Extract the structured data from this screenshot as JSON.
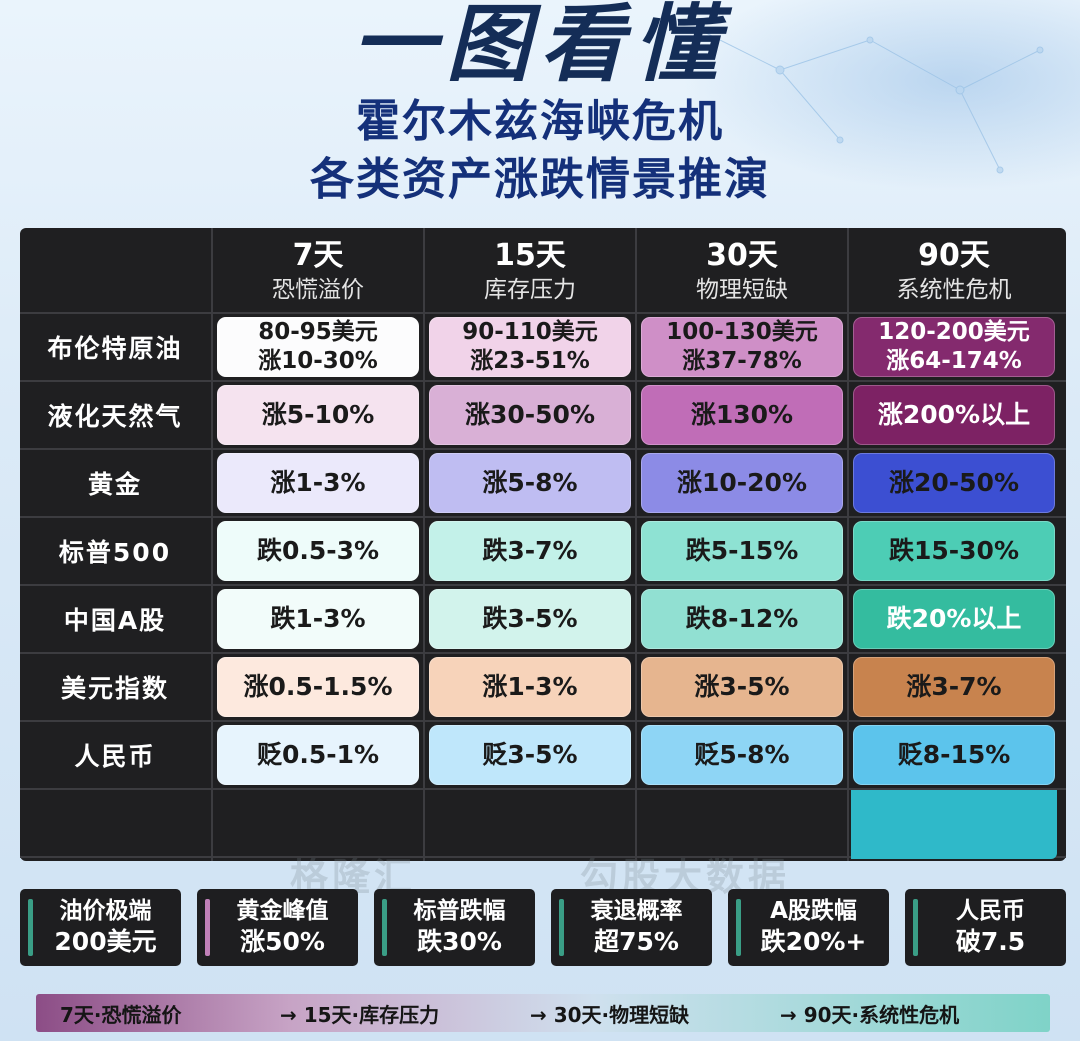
{
  "title": {
    "main": "一图看懂",
    "line1": "霍尔木兹海峡危机",
    "line2": "各类资产涨跌情景推演"
  },
  "columns": [
    {
      "days": "7天",
      "stage": "恐慌溢价"
    },
    {
      "days": "15天",
      "stage": "库存压力"
    },
    {
      "days": "30天",
      "stage": "物理短缺"
    },
    {
      "days": "90天",
      "stage": "系统性危机"
    }
  ],
  "rows": [
    {
      "label": "布伦特原油",
      "cells": [
        {
          "l1": "80-95美元",
          "l2": "涨10-30%"
        },
        {
          "l1": "90-110美元",
          "l2": "涨23-51%"
        },
        {
          "l1": "100-130美元",
          "l2": "涨37-78%"
        },
        {
          "l1": "120-200美元",
          "l2": "涨64-174%"
        }
      ]
    },
    {
      "label": "液化天然气",
      "cells": [
        {
          "l1": "涨5-10%"
        },
        {
          "l1": "涨30-50%"
        },
        {
          "l1": "涨130%"
        },
        {
          "l1": "涨200%以上"
        }
      ]
    },
    {
      "label": "黄金",
      "cells": [
        {
          "l1": "涨1-3%"
        },
        {
          "l1": "涨5-8%"
        },
        {
          "l1": "涨10-20%"
        },
        {
          "l1": "涨20-50%"
        }
      ]
    },
    {
      "label": "标普500",
      "cells": [
        {
          "l1": "跌0.5-3%"
        },
        {
          "l1": "跌3-7%"
        },
        {
          "l1": "跌5-15%"
        },
        {
          "l1": "跌15-30%"
        }
      ]
    },
    {
      "label": "中国A股",
      "cells": [
        {
          "l1": "跌1-3%"
        },
        {
          "l1": "跌3-5%"
        },
        {
          "l1": "跌8-12%"
        },
        {
          "l1": "跌20%以上"
        }
      ]
    },
    {
      "label": "美元指数",
      "cells": [
        {
          "l1": "涨0.5-1.5%"
        },
        {
          "l1": "涨1-3%"
        },
        {
          "l1": "涨3-5%"
        },
        {
          "l1": "涨3-7%"
        }
      ]
    },
    {
      "label": "人民币",
      "cells": [
        {
          "l1": "贬0.5-1%"
        },
        {
          "l1": "贬3-5%"
        },
        {
          "l1": "贬5-8%"
        },
        {
          "l1": "贬8-15%"
        }
      ]
    }
  ],
  "cell_colors": [
    [
      "#fcfcfd",
      "#f1d3e9",
      "#cf8fc7",
      "#842a6e"
    ],
    [
      "#f5e3ef",
      "#d9b0d6",
      "#c06db7",
      "#7d2264"
    ],
    [
      "#ebe9fb",
      "#bfbdf2",
      "#8c8be6",
      "#3c4fd2"
    ],
    [
      "#eefcfa",
      "#c3f1e9",
      "#8ee2d3",
      "#4dcdb5"
    ],
    [
      "#f2fcfa",
      "#d2f3ec",
      "#91e0d2",
      "#34bc9f"
    ],
    [
      "#fde9de",
      "#f7d3ba",
      "#e6b58f",
      "#c8834e"
    ],
    [
      "#e7f4fd",
      "#bfe7fb",
      "#8ed5f5",
      "#5cc4ec"
    ]
  ],
  "cell_text_light": [
    [
      false,
      false,
      false,
      true
    ],
    [
      false,
      false,
      false,
      true
    ],
    [
      false,
      false,
      false,
      false
    ],
    [
      false,
      false,
      false,
      false
    ],
    [
      false,
      false,
      false,
      true
    ],
    [
      false,
      false,
      false,
      false
    ],
    [
      false,
      false,
      false,
      false
    ]
  ],
  "watermarks": [
    "格隆汇",
    "勾股大数据"
  ],
  "kpis": [
    {
      "top": "油价极端",
      "bottom": "200美元",
      "color": "#3a9e86"
    },
    {
      "top": "黄金峰值",
      "bottom": "涨50%",
      "color": "#c080b8"
    },
    {
      "top": "标普跌幅",
      "bottom": "跌30%",
      "color": "#3a9e86"
    },
    {
      "top": "衰退概率",
      "bottom": "超75%",
      "color": "#3a9e86"
    },
    {
      "top": "A股跌幅",
      "bottom": "跌20%+",
      "color": "#3a9e86"
    },
    {
      "top": "人民币",
      "bottom": "破7.5",
      "color": "#3a9e86"
    }
  ],
  "timeline": [
    {
      "label": "7天·恐慌溢价"
    },
    {
      "label": "→ 15天·库存压力"
    },
    {
      "label": "→ 30天·物理短缺"
    },
    {
      "label": "→ 90天·系统性危机"
    }
  ]
}
